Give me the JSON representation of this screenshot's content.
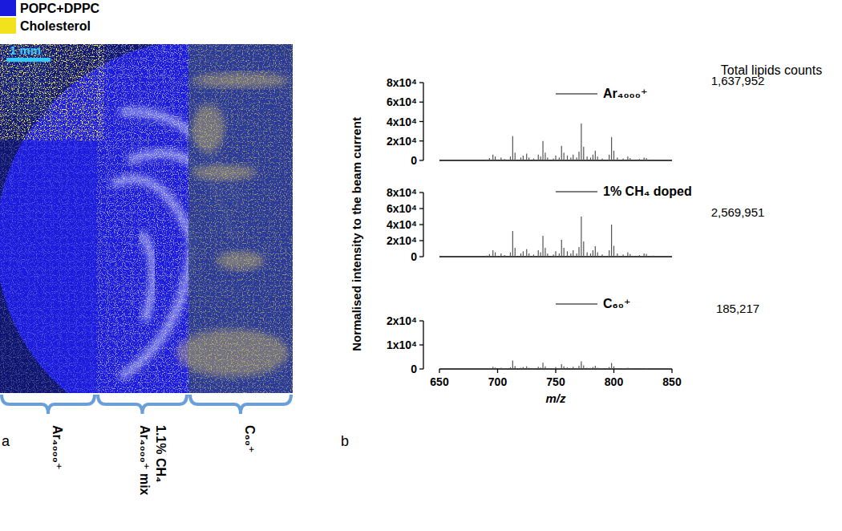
{
  "image_panel": {
    "label": "a",
    "legend": [
      {
        "name": "POPC+DPPC",
        "color": "#1a1adc"
      },
      {
        "name": "Cholesterol",
        "color": "#f2e21c"
      }
    ],
    "scale_bar": "1 mm",
    "regions": [
      [
        "Ar₄₀₀₀⁺"
      ],
      [
        "Ar₄₀₀₀⁺ mix",
        "1.1% CH₄"
      ],
      [
        "C₆₀⁺"
      ]
    ]
  },
  "spectra_panel": {
    "label": "b",
    "ylabel": "Normalised intensity to the beam current",
    "xlabel": "m/z",
    "total_header": "Total lipids counts"
  },
  "chart_data": [
    {
      "type": "bar",
      "color": "#555555",
      "tick_labels": "y",
      "annotation": "1,637,952",
      "x": [
        691,
        693,
        696,
        698,
        703,
        706,
        711,
        713,
        715,
        720,
        722,
        725,
        727,
        731,
        735,
        737,
        739,
        741,
        743,
        748,
        750,
        753,
        755,
        757,
        760,
        763,
        765,
        768,
        770,
        772,
        774,
        777,
        780,
        782,
        784,
        786,
        790,
        796,
        798,
        800,
        803,
        808,
        812,
        814,
        822,
        826,
        828,
        834
      ],
      "series": [
        {
          "name": "Ar₄₀₀₀⁺",
          "values": [
            1000,
            2500,
            6000,
            4000,
            3000,
            1500,
            4000,
            25000,
            8000,
            3000,
            5000,
            7000,
            3000,
            2000,
            6000,
            4000,
            20000,
            8000,
            3000,
            2000,
            5000,
            3000,
            15000,
            8000,
            5000,
            3000,
            6000,
            3000,
            9000,
            38000,
            14000,
            4000,
            3000,
            6000,
            10000,
            4000,
            2000,
            6000,
            24000,
            10000,
            3000,
            2000,
            4000,
            2500,
            1500,
            3000,
            2500,
            1000
          ]
        }
      ],
      "xlim": [
        650,
        850
      ],
      "ylim": [
        0,
        80000
      ],
      "yticks": [
        0,
        {
          "value": 20000,
          "label": "2x10⁴"
        },
        {
          "value": 40000,
          "label": "4x10⁴"
        },
        {
          "value": 60000,
          "label": "6x10⁴"
        },
        {
          "value": 80000,
          "label": "8x10⁴"
        }
      ]
    },
    {
      "type": "bar",
      "color": "#555555",
      "tick_labels": "y",
      "annotation": "2,569,951",
      "x": [
        691,
        693,
        696,
        698,
        703,
        706,
        711,
        713,
        715,
        720,
        722,
        725,
        727,
        731,
        735,
        737,
        739,
        741,
        743,
        748,
        750,
        753,
        755,
        757,
        760,
        763,
        765,
        768,
        770,
        772,
        774,
        777,
        780,
        782,
        784,
        786,
        790,
        796,
        798,
        800,
        803,
        808,
        812,
        814,
        822,
        826,
        828,
        834
      ],
      "series": [
        {
          "name": "1% CH₄ doped",
          "values": [
            1300,
            3300,
            8000,
            5400,
            4000,
            2000,
            5400,
            32000,
            11000,
            4000,
            6700,
            9400,
            4000,
            2700,
            8000,
            5400,
            26000,
            11000,
            4000,
            2700,
            6700,
            4000,
            21000,
            11000,
            6700,
            4000,
            8000,
            4000,
            12000,
            50000,
            19000,
            5400,
            4000,
            8000,
            13000,
            5400,
            2700,
            8000,
            40000,
            13500,
            4000,
            2700,
            5400,
            3400,
            2000,
            4000,
            3400,
            1300
          ]
        }
      ],
      "xlim": [
        650,
        850
      ],
      "ylim": [
        0,
        80000
      ],
      "yticks": [
        0,
        {
          "value": 20000,
          "label": "2x10⁴"
        },
        {
          "value": 40000,
          "label": "4x10⁴"
        },
        {
          "value": 60000,
          "label": "6x10⁴"
        },
        {
          "value": 80000,
          "label": "8x10⁴"
        }
      ]
    },
    {
      "type": "bar",
      "color": "#555555",
      "annotation": "185,217",
      "x": [
        691,
        693,
        696,
        698,
        703,
        706,
        711,
        713,
        715,
        720,
        722,
        725,
        727,
        731,
        735,
        737,
        739,
        741,
        743,
        748,
        750,
        753,
        755,
        757,
        760,
        763,
        765,
        768,
        770,
        772,
        774,
        777,
        780,
        782,
        784,
        786,
        790,
        796,
        798,
        800,
        803,
        808,
        812,
        814,
        822,
        826,
        828,
        834
      ],
      "series": [
        {
          "name": "C₆₀⁺",
          "values": [
            200,
            400,
            900,
            600,
            500,
            250,
            700,
            3500,
            1200,
            500,
            800,
            1100,
            500,
            300,
            900,
            600,
            2600,
            1100,
            400,
            300,
            800,
            400,
            2000,
            1100,
            700,
            400,
            900,
            400,
            1300,
            3200,
            1500,
            500,
            400,
            800,
            1300,
            500,
            300,
            800,
            2500,
            1100,
            400,
            300,
            500,
            300,
            200,
            400,
            300,
            150
          ]
        }
      ],
      "xlim": [
        650,
        850
      ],
      "ylim": [
        0,
        20000
      ],
      "yticks": [
        0,
        {
          "value": 10000,
          "label": "1x10⁴"
        },
        {
          "value": 20000,
          "label": "2x10⁴"
        }
      ],
      "xticks": [
        650,
        700,
        750,
        800,
        850
      ]
    }
  ]
}
